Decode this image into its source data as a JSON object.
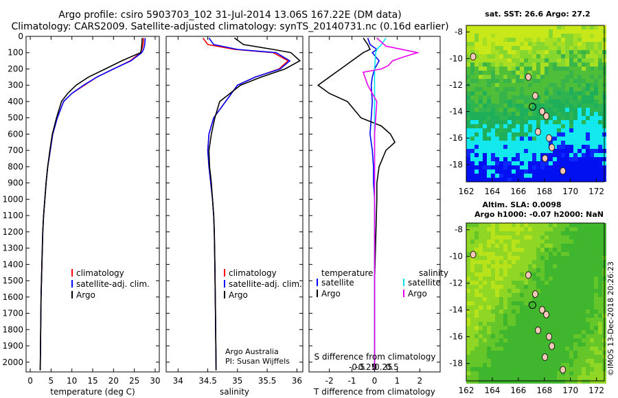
{
  "title": {
    "line1": "Argo profile: csiro 5903703_102 31-Jul-2014 13.06S 167.22E (DM data)",
    "line2": "Climatology: CARS2009. Satellite-adjusted climatology: synTS_20140731.nc (0.16d earlier)"
  },
  "watermark": "©IMOS 13-Dec-2018 20:26:23",
  "colors": {
    "climatology": "#ff0000",
    "satellite": "#0000ff",
    "argo": "#000000",
    "sal_satellite": "#00e5ee",
    "sal_argo": "#ee00ee"
  },
  "chart_data": [
    {
      "type": "line",
      "name": "temperature",
      "xlabel": "temperature (deg C)",
      "ylabel": "",
      "xlim": [
        -1,
        31
      ],
      "ylim": [
        2060,
        0
      ],
      "xticks": [
        0,
        5,
        10,
        15,
        20,
        25,
        30
      ],
      "yticks": [
        0,
        100,
        200,
        300,
        400,
        500,
        600,
        700,
        800,
        900,
        1000,
        1100,
        1200,
        1300,
        1400,
        1500,
        1600,
        1700,
        1800,
        1900,
        2000
      ],
      "legend": [
        "climatology",
        "satellite-adj. clim.",
        "Argo"
      ],
      "series": [
        {
          "name": "climatology",
          "x": [
            27.2,
            27.1,
            26.8,
            26.5,
            24,
            20,
            16,
            13,
            10,
            8,
            6.5,
            5.4,
            4.8,
            4.2,
            3.8,
            3.5,
            3.2,
            3,
            2.8,
            2.6,
            2.4
          ],
          "y": [
            10,
            50,
            80,
            100,
            150,
            200,
            250,
            300,
            350,
            400,
            500,
            600,
            700,
            800,
            900,
            1000,
            1100,
            1200,
            1400,
            1600,
            2050
          ]
        },
        {
          "name": "satellite-adj. clim.",
          "x": [
            27.6,
            27.5,
            27.2,
            26.8,
            24.2,
            20,
            16,
            12.8,
            10,
            8,
            6.5,
            5.4,
            4.8,
            4.2,
            3.8,
            3.5,
            3.2,
            3,
            2.8,
            2.6,
            2.4
          ],
          "y": [
            10,
            50,
            80,
            100,
            150,
            200,
            250,
            300,
            350,
            400,
            500,
            600,
            700,
            800,
            900,
            1000,
            1100,
            1200,
            1400,
            1600,
            2050
          ]
        },
        {
          "name": "Argo",
          "x": [
            26.9,
            26.8,
            26.7,
            26.5,
            22,
            18,
            14,
            11,
            9,
            7.5,
            6.3,
            5.3,
            4.7,
            4.2,
            3.8,
            3.5,
            3.2,
            3,
            2.8,
            2.6,
            2.4
          ],
          "y": [
            10,
            50,
            80,
            100,
            150,
            200,
            250,
            300,
            350,
            400,
            500,
            600,
            700,
            800,
            900,
            1000,
            1100,
            1200,
            1400,
            1600,
            2050
          ]
        }
      ]
    },
    {
      "type": "line",
      "name": "salinity",
      "xlabel": "salinity",
      "ylabel": "",
      "xlim": [
        33.8,
        36.1
      ],
      "ylim": [
        2060,
        0
      ],
      "xticks": [
        34,
        34.5,
        35,
        35.5,
        36
      ],
      "legend": [
        "climatology",
        "satellite-adj. clim.",
        "Argo"
      ],
      "annotation": [
        "Argo Australia",
        "PI: Susan Wijffels"
      ],
      "series": [
        {
          "name": "climatology",
          "x": [
            34.42,
            34.5,
            34.95,
            35.6,
            35.85,
            35.7,
            35.3,
            35.0,
            34.8,
            34.6,
            34.52,
            34.5,
            34.52,
            34.55,
            34.58,
            34.6,
            34.61,
            34.62,
            34.63,
            34.64
          ],
          "y": [
            10,
            50,
            80,
            100,
            150,
            200,
            250,
            300,
            400,
            500,
            600,
            700,
            800,
            900,
            1000,
            1100,
            1200,
            1400,
            1700,
            2050
          ]
        },
        {
          "name": "satellite-adj. clim.",
          "x": [
            34.52,
            34.6,
            35.0,
            35.65,
            35.88,
            35.72,
            35.3,
            35.0,
            34.8,
            34.6,
            34.52,
            34.5,
            34.52,
            34.55,
            34.58,
            34.6,
            34.61,
            34.62,
            34.63,
            34.64
          ],
          "y": [
            10,
            50,
            80,
            100,
            150,
            200,
            250,
            300,
            400,
            500,
            600,
            700,
            800,
            900,
            1000,
            1100,
            1200,
            1400,
            1700,
            2050
          ]
        },
        {
          "name": "Argo",
          "x": [
            34.95,
            35.1,
            35.6,
            35.9,
            36.05,
            35.8,
            35.4,
            35.05,
            34.7,
            34.62,
            34.56,
            34.52,
            34.53,
            34.56,
            34.58,
            34.6,
            34.61,
            34.62,
            34.63,
            34.64
          ],
          "y": [
            10,
            50,
            80,
            100,
            150,
            200,
            250,
            300,
            400,
            500,
            600,
            700,
            800,
            900,
            1000,
            1100,
            1200,
            1400,
            1700,
            2050
          ]
        }
      ]
    },
    {
      "type": "line",
      "name": "difference",
      "xlabel": "T difference from climatology",
      "ylabel": "",
      "xlim": [
        -2.9,
        2.9
      ],
      "ylim": [
        2060,
        0
      ],
      "xticks": [
        -2,
        -1,
        0,
        1,
        2
      ],
      "sticks_label": "S difference from climatology",
      "sticks": [
        "-0.5",
        "-0.25",
        "0",
        "0.25",
        "0.5"
      ],
      "sticks_pos": [
        -0.5,
        -0.25,
        0,
        0.25,
        0.5
      ],
      "legend_left_title": "temperature",
      "legend_right_title": "salinity",
      "legend_left": [
        "satellite",
        "Argo"
      ],
      "legend_right": [
        "satellite",
        "Argo"
      ],
      "series": [
        {
          "name": "T satellite",
          "x": [
            -0.3,
            -0.2,
            0.1,
            -0.1,
            0.2,
            0.0,
            -0.1,
            -0.15,
            -0.1,
            -0.15,
            -0.2,
            -0.1,
            -0.05,
            -0.05,
            0.0,
            0.0,
            0.0,
            0.0
          ],
          "y": [
            10,
            50,
            80,
            100,
            150,
            200,
            250,
            300,
            400,
            500,
            600,
            700,
            800,
            900,
            1000,
            1100,
            1500,
            2050
          ]
        },
        {
          "name": "T Argo",
          "x": [
            -0.5,
            -0.3,
            -0.2,
            -0.5,
            -1.5,
            -2.0,
            -2.5,
            -2.0,
            -1.2,
            -0.6,
            0.3,
            0.7,
            0.9,
            0.5,
            0.2,
            0.1,
            0.1,
            0.0,
            0.0
          ],
          "y": [
            10,
            50,
            80,
            100,
            200,
            250,
            300,
            350,
            400,
            500,
            550,
            600,
            650,
            700,
            800,
            900,
            1000,
            1500,
            2050
          ]
        },
        {
          "name": "S satellite",
          "x": [
            0.5,
            0.3,
            0.1,
            0.05,
            0.0,
            0.0,
            0.0,
            0.0
          ],
          "y": [
            10,
            50,
            80,
            100,
            200,
            400,
            1000,
            2050
          ]
        },
        {
          "name": "S Argo",
          "x": [
            0.1,
            0.5,
            1.9,
            1.2,
            0.8,
            0.6,
            0.3,
            -0.5,
            -0.3,
            0.1,
            0.0,
            0.0,
            0.0
          ],
          "y": [
            10,
            60,
            100,
            130,
            150,
            180,
            200,
            220,
            300,
            400,
            600,
            1000,
            2050
          ]
        }
      ]
    }
  ],
  "maps": [
    {
      "title": "sat. SST: 26.6 Argo: 27.2",
      "yticks": [
        "-8",
        "-10",
        "-12",
        "-14",
        "-16",
        "-18"
      ],
      "xticks": [
        "162",
        "164",
        "166",
        "168",
        "170",
        "172"
      ]
    },
    {
      "title_line1": "Altim. SLA: 0.0098",
      "title_line2": "Argo h1000: -0.07 h2000: NaN",
      "yticks": [
        "-8",
        "-10",
        "-12",
        "-14",
        "-16",
        "-18"
      ],
      "xticks": [
        "162",
        "164",
        "166",
        "168",
        "170",
        "172"
      ]
    }
  ]
}
